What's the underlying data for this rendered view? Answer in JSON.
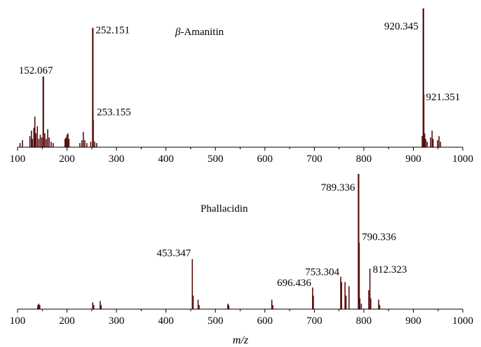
{
  "chart_data": [
    {
      "type": "bar",
      "title_prefix": "β",
      "title_suffix": "-Amanitin",
      "xlabel": "",
      "ylabel": "",
      "xlim": [
        100,
        1000
      ],
      "ylim": [
        0,
        100
      ],
      "x_ticks": [
        "100",
        "200",
        "300",
        "400",
        "500",
        "600",
        "700",
        "800",
        "900",
        "1000"
      ],
      "grid": false,
      "color": "#5a0f0f",
      "peaks": [
        {
          "x": 105,
          "y": 3
        },
        {
          "x": 110,
          "y": 5
        },
        {
          "x": 125,
          "y": 8
        },
        {
          "x": 128,
          "y": 12
        },
        {
          "x": 130,
          "y": 6
        },
        {
          "x": 133,
          "y": 14
        },
        {
          "x": 135,
          "y": 22
        },
        {
          "x": 137,
          "y": 10
        },
        {
          "x": 140,
          "y": 15
        },
        {
          "x": 143,
          "y": 6
        },
        {
          "x": 146,
          "y": 9
        },
        {
          "x": 149,
          "y": 7
        },
        {
          "x": 152.067,
          "y": 51,
          "label": "152.067"
        },
        {
          "x": 155,
          "y": 10
        },
        {
          "x": 158,
          "y": 6
        },
        {
          "x": 161,
          "y": 13
        },
        {
          "x": 164,
          "y": 7
        },
        {
          "x": 168,
          "y": 4
        },
        {
          "x": 172,
          "y": 3
        },
        {
          "x": 196,
          "y": 6
        },
        {
          "x": 198,
          "y": 7
        },
        {
          "x": 200,
          "y": 9
        },
        {
          "x": 202,
          "y": 10
        },
        {
          "x": 204,
          "y": 6
        },
        {
          "x": 226,
          "y": 3
        },
        {
          "x": 230,
          "y": 5
        },
        {
          "x": 233,
          "y": 11
        },
        {
          "x": 236,
          "y": 5
        },
        {
          "x": 240,
          "y": 3
        },
        {
          "x": 248,
          "y": 4
        },
        {
          "x": 252.151,
          "y": 86,
          "label": "252.151"
        },
        {
          "x": 253.155,
          "y": 20,
          "label": "253.155"
        },
        {
          "x": 256,
          "y": 4
        },
        {
          "x": 260,
          "y": 3
        },
        {
          "x": 918,
          "y": 8
        },
        {
          "x": 920.345,
          "y": 100,
          "label": "920.345"
        },
        {
          "x": 921.351,
          "y": 38,
          "label": "921.351"
        },
        {
          "x": 923,
          "y": 10
        },
        {
          "x": 925,
          "y": 6
        },
        {
          "x": 928,
          "y": 4
        },
        {
          "x": 935,
          "y": 7
        },
        {
          "x": 938,
          "y": 12
        },
        {
          "x": 940,
          "y": 6
        },
        {
          "x": 949,
          "y": 5
        },
        {
          "x": 952,
          "y": 8
        },
        {
          "x": 955,
          "y": 4
        }
      ]
    },
    {
      "type": "bar",
      "title": "Phallacidin",
      "xlabel": "m/z",
      "ylabel": "",
      "xlim": [
        100,
        1000
      ],
      "ylim": [
        0,
        100
      ],
      "x_ticks": [
        "100",
        "200",
        "300",
        "400",
        "500",
        "600",
        "700",
        "800",
        "900",
        "1000"
      ],
      "grid": false,
      "color": "#5a0f0f",
      "peaks": [
        {
          "x": 141,
          "y": 3
        },
        {
          "x": 143,
          "y": 4
        },
        {
          "x": 145,
          "y": 3
        },
        {
          "x": 252,
          "y": 5
        },
        {
          "x": 254,
          "y": 3
        },
        {
          "x": 267,
          "y": 6
        },
        {
          "x": 269,
          "y": 3
        },
        {
          "x": 453.347,
          "y": 37,
          "label": "453.347"
        },
        {
          "x": 455,
          "y": 10
        },
        {
          "x": 465,
          "y": 7
        },
        {
          "x": 467,
          "y": 3
        },
        {
          "x": 525,
          "y": 4
        },
        {
          "x": 527,
          "y": 3
        },
        {
          "x": 614,
          "y": 7
        },
        {
          "x": 616,
          "y": 3
        },
        {
          "x": 696.436,
          "y": 16,
          "label": "696.436"
        },
        {
          "x": 698,
          "y": 10
        },
        {
          "x": 753.304,
          "y": 24,
          "label": "753.304"
        },
        {
          "x": 755,
          "y": 20
        },
        {
          "x": 762,
          "y": 20
        },
        {
          "x": 764,
          "y": 10
        },
        {
          "x": 770,
          "y": 17
        },
        {
          "x": 789.336,
          "y": 100,
          "label": "789.336"
        },
        {
          "x": 790.336,
          "y": 49,
          "label": "790.336"
        },
        {
          "x": 792,
          "y": 8
        },
        {
          "x": 795,
          "y": 4
        },
        {
          "x": 810,
          "y": 14
        },
        {
          "x": 812.323,
          "y": 30,
          "label": "812.323"
        },
        {
          "x": 814,
          "y": 8
        },
        {
          "x": 830,
          "y": 7
        },
        {
          "x": 832,
          "y": 3
        }
      ]
    }
  ]
}
